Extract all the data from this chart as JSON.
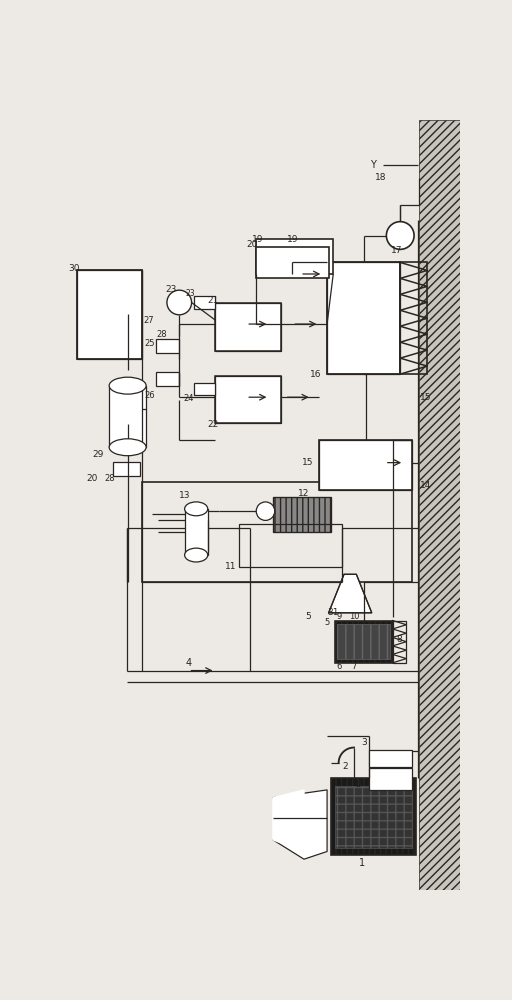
{
  "bg_color": "#ede9e4",
  "line_color": "#2a2520",
  "lw": 0.9,
  "fig_w": 5.12,
  "fig_h": 10.0,
  "dpi": 100
}
